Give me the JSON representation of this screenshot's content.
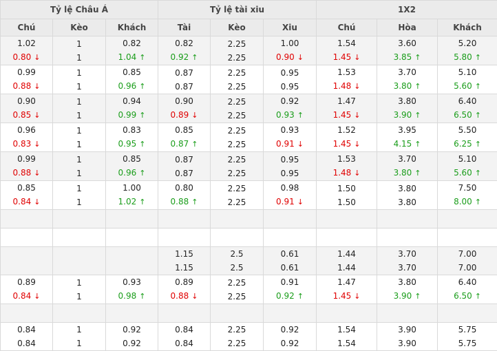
{
  "groups": [
    "Tỷ lệ Châu Á",
    "Tỷ lệ tài xiu",
    "1X2"
  ],
  "columns": [
    "Chú",
    "Kèo",
    "Khách",
    "Tài",
    "Kèo",
    "Xiu",
    "Chú",
    "Hòa",
    "Khách"
  ],
  "colors": {
    "up": "#1a9d1a",
    "down": "#e00000",
    "header_bg": "#ebebeb",
    "row_shade": "#f3f3f3"
  },
  "arrows": {
    "up": "↑",
    "down": "↓"
  },
  "rows": [
    {
      "type": "data",
      "shade": true,
      "cells": [
        [
          {
            "v": "1.02",
            "d": ""
          },
          {
            "v": "0.80",
            "d": "down"
          }
        ],
        [
          {
            "v": "1",
            "d": ""
          },
          {
            "v": "1",
            "d": ""
          }
        ],
        [
          {
            "v": "0.82",
            "d": ""
          },
          {
            "v": "1.04",
            "d": "up"
          }
        ],
        [
          {
            "v": "0.82",
            "d": ""
          },
          {
            "v": "0.92",
            "d": "up"
          }
        ],
        [
          {
            "v": "2.25",
            "d": ""
          },
          {
            "v": "2.25",
            "d": ""
          }
        ],
        [
          {
            "v": "1.00",
            "d": ""
          },
          {
            "v": "0.90",
            "d": "down"
          }
        ],
        [
          {
            "v": "1.54",
            "d": ""
          },
          {
            "v": "1.45",
            "d": "down"
          }
        ],
        [
          {
            "v": "3.60",
            "d": ""
          },
          {
            "v": "3.85",
            "d": "up"
          }
        ],
        [
          {
            "v": "5.20",
            "d": ""
          },
          {
            "v": "5.80",
            "d": "up"
          }
        ]
      ]
    },
    {
      "type": "data",
      "shade": false,
      "cells": [
        [
          {
            "v": "0.99",
            "d": ""
          },
          {
            "v": "0.88",
            "d": "down"
          }
        ],
        [
          {
            "v": "1",
            "d": ""
          },
          {
            "v": "1",
            "d": ""
          }
        ],
        [
          {
            "v": "0.85",
            "d": ""
          },
          {
            "v": "0.96",
            "d": "up"
          }
        ],
        [
          {
            "v": "0.87",
            "d": ""
          },
          {
            "v": "0.87",
            "d": ""
          }
        ],
        [
          {
            "v": "2.25",
            "d": ""
          },
          {
            "v": "2.25",
            "d": ""
          }
        ],
        [
          {
            "v": "0.95",
            "d": ""
          },
          {
            "v": "0.95",
            "d": ""
          }
        ],
        [
          {
            "v": "1.53",
            "d": ""
          },
          {
            "v": "1.48",
            "d": "down"
          }
        ],
        [
          {
            "v": "3.70",
            "d": ""
          },
          {
            "v": "3.80",
            "d": "up"
          }
        ],
        [
          {
            "v": "5.10",
            "d": ""
          },
          {
            "v": "5.60",
            "d": "up"
          }
        ]
      ]
    },
    {
      "type": "data",
      "shade": true,
      "cells": [
        [
          {
            "v": "0.90",
            "d": ""
          },
          {
            "v": "0.85",
            "d": "down"
          }
        ],
        [
          {
            "v": "1",
            "d": ""
          },
          {
            "v": "1",
            "d": ""
          }
        ],
        [
          {
            "v": "0.94",
            "d": ""
          },
          {
            "v": "0.99",
            "d": "up"
          }
        ],
        [
          {
            "v": "0.90",
            "d": ""
          },
          {
            "v": "0.89",
            "d": "down"
          }
        ],
        [
          {
            "v": "2.25",
            "d": ""
          },
          {
            "v": "2.25",
            "d": ""
          }
        ],
        [
          {
            "v": "0.92",
            "d": ""
          },
          {
            "v": "0.93",
            "d": "up"
          }
        ],
        [
          {
            "v": "1.47",
            "d": ""
          },
          {
            "v": "1.45",
            "d": "down"
          }
        ],
        [
          {
            "v": "3.80",
            "d": ""
          },
          {
            "v": "3.90",
            "d": "up"
          }
        ],
        [
          {
            "v": "6.40",
            "d": ""
          },
          {
            "v": "6.50",
            "d": "up"
          }
        ]
      ]
    },
    {
      "type": "data",
      "shade": false,
      "cells": [
        [
          {
            "v": "0.96",
            "d": ""
          },
          {
            "v": "0.83",
            "d": "down"
          }
        ],
        [
          {
            "v": "1",
            "d": ""
          },
          {
            "v": "1",
            "d": ""
          }
        ],
        [
          {
            "v": "0.83",
            "d": ""
          },
          {
            "v": "0.95",
            "d": "up"
          }
        ],
        [
          {
            "v": "0.85",
            "d": ""
          },
          {
            "v": "0.87",
            "d": "up"
          }
        ],
        [
          {
            "v": "2.25",
            "d": ""
          },
          {
            "v": "2.25",
            "d": ""
          }
        ],
        [
          {
            "v": "0.93",
            "d": ""
          },
          {
            "v": "0.91",
            "d": "down"
          }
        ],
        [
          {
            "v": "1.52",
            "d": ""
          },
          {
            "v": "1.45",
            "d": "down"
          }
        ],
        [
          {
            "v": "3.95",
            "d": ""
          },
          {
            "v": "4.15",
            "d": "up"
          }
        ],
        [
          {
            "v": "5.50",
            "d": ""
          },
          {
            "v": "6.25",
            "d": "up"
          }
        ]
      ]
    },
    {
      "type": "data",
      "shade": true,
      "cells": [
        [
          {
            "v": "0.99",
            "d": ""
          },
          {
            "v": "0.88",
            "d": "down"
          }
        ],
        [
          {
            "v": "1",
            "d": ""
          },
          {
            "v": "1",
            "d": ""
          }
        ],
        [
          {
            "v": "0.85",
            "d": ""
          },
          {
            "v": "0.96",
            "d": "up"
          }
        ],
        [
          {
            "v": "0.87",
            "d": ""
          },
          {
            "v": "0.87",
            "d": ""
          }
        ],
        [
          {
            "v": "2.25",
            "d": ""
          },
          {
            "v": "2.25",
            "d": ""
          }
        ],
        [
          {
            "v": "0.95",
            "d": ""
          },
          {
            "v": "0.95",
            "d": ""
          }
        ],
        [
          {
            "v": "1.53",
            "d": ""
          },
          {
            "v": "1.48",
            "d": "down"
          }
        ],
        [
          {
            "v": "3.70",
            "d": ""
          },
          {
            "v": "3.80",
            "d": "up"
          }
        ],
        [
          {
            "v": "5.10",
            "d": ""
          },
          {
            "v": "5.60",
            "d": "up"
          }
        ]
      ]
    },
    {
      "type": "data",
      "shade": false,
      "cells": [
        [
          {
            "v": "0.85",
            "d": ""
          },
          {
            "v": "0.84",
            "d": "down"
          }
        ],
        [
          {
            "v": "1",
            "d": ""
          },
          {
            "v": "1",
            "d": ""
          }
        ],
        [
          {
            "v": "1.00",
            "d": ""
          },
          {
            "v": "1.02",
            "d": "up"
          }
        ],
        [
          {
            "v": "0.80",
            "d": ""
          },
          {
            "v": "0.88",
            "d": "up"
          }
        ],
        [
          {
            "v": "2.25",
            "d": ""
          },
          {
            "v": "2.25",
            "d": ""
          }
        ],
        [
          {
            "v": "0.98",
            "d": ""
          },
          {
            "v": "0.91",
            "d": "down"
          }
        ],
        [
          {
            "v": "1.50",
            "d": ""
          },
          {
            "v": "1.50",
            "d": ""
          }
        ],
        [
          {
            "v": "3.80",
            "d": ""
          },
          {
            "v": "3.80",
            "d": ""
          }
        ],
        [
          {
            "v": "7.50",
            "d": ""
          },
          {
            "v": "8.00",
            "d": "up"
          }
        ]
      ]
    },
    {
      "type": "empty",
      "shade": true
    },
    {
      "type": "empty",
      "shade": false
    },
    {
      "type": "data",
      "shade": true,
      "cells": [
        [],
        [],
        [],
        [
          {
            "v": "1.15",
            "d": ""
          },
          {
            "v": "1.15",
            "d": ""
          }
        ],
        [
          {
            "v": "2.5",
            "d": ""
          },
          {
            "v": "2.5",
            "d": ""
          }
        ],
        [
          {
            "v": "0.61",
            "d": ""
          },
          {
            "v": "0.61",
            "d": ""
          }
        ],
        [
          {
            "v": "1.44",
            "d": ""
          },
          {
            "v": "1.44",
            "d": ""
          }
        ],
        [
          {
            "v": "3.70",
            "d": ""
          },
          {
            "v": "3.70",
            "d": ""
          }
        ],
        [
          {
            "v": "7.00",
            "d": ""
          },
          {
            "v": "7.00",
            "d": ""
          }
        ]
      ]
    },
    {
      "type": "data",
      "shade": false,
      "cells": [
        [
          {
            "v": "0.89",
            "d": ""
          },
          {
            "v": "0.84",
            "d": "down"
          }
        ],
        [
          {
            "v": "1",
            "d": ""
          },
          {
            "v": "1",
            "d": ""
          }
        ],
        [
          {
            "v": "0.93",
            "d": ""
          },
          {
            "v": "0.98",
            "d": "up"
          }
        ],
        [
          {
            "v": "0.89",
            "d": ""
          },
          {
            "v": "0.88",
            "d": "down"
          }
        ],
        [
          {
            "v": "2.25",
            "d": ""
          },
          {
            "v": "2.25",
            "d": ""
          }
        ],
        [
          {
            "v": "0.91",
            "d": ""
          },
          {
            "v": "0.92",
            "d": "up"
          }
        ],
        [
          {
            "v": "1.47",
            "d": ""
          },
          {
            "v": "1.45",
            "d": "down"
          }
        ],
        [
          {
            "v": "3.80",
            "d": ""
          },
          {
            "v": "3.90",
            "d": "up"
          }
        ],
        [
          {
            "v": "6.40",
            "d": ""
          },
          {
            "v": "6.50",
            "d": "up"
          }
        ]
      ]
    },
    {
      "type": "empty",
      "shade": true
    },
    {
      "type": "data",
      "shade": false,
      "cells": [
        [
          {
            "v": "0.84",
            "d": ""
          },
          {
            "v": "0.84",
            "d": ""
          }
        ],
        [
          {
            "v": "1",
            "d": ""
          },
          {
            "v": "1",
            "d": ""
          }
        ],
        [
          {
            "v": "0.92",
            "d": ""
          },
          {
            "v": "0.92",
            "d": ""
          }
        ],
        [
          {
            "v": "0.84",
            "d": ""
          },
          {
            "v": "0.84",
            "d": ""
          }
        ],
        [
          {
            "v": "2.25",
            "d": ""
          },
          {
            "v": "2.25",
            "d": ""
          }
        ],
        [
          {
            "v": "0.92",
            "d": ""
          },
          {
            "v": "0.92",
            "d": ""
          }
        ],
        [
          {
            "v": "1.54",
            "d": ""
          },
          {
            "v": "1.54",
            "d": ""
          }
        ],
        [
          {
            "v": "3.90",
            "d": ""
          },
          {
            "v": "3.90",
            "d": ""
          }
        ],
        [
          {
            "v": "5.75",
            "d": ""
          },
          {
            "v": "5.75",
            "d": ""
          }
        ]
      ]
    }
  ]
}
